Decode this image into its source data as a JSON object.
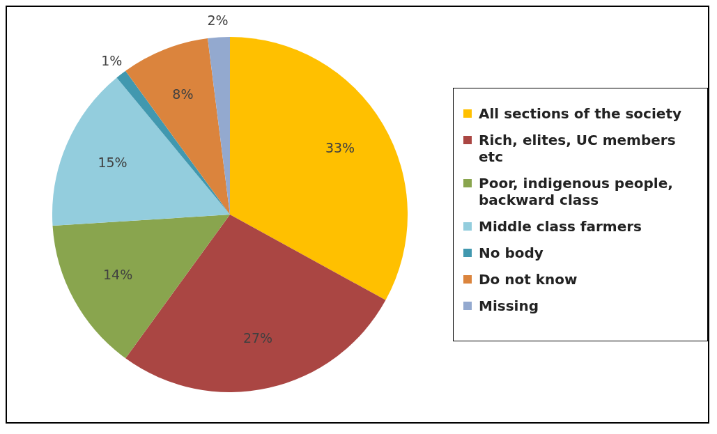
{
  "chart_data": {
    "type": "pie",
    "categories": [
      "All sections of the society",
      "Rich, elites, UC members etc",
      "Poor, indigenous people, backward class",
      "Middle class farmers",
      "No body",
      "Do not know",
      "Missing"
    ],
    "values": [
      33,
      27,
      14,
      15,
      1,
      8,
      2
    ],
    "colors": [
      "#ffc000",
      "#aa4643",
      "#89a54e",
      "#93cddd",
      "#4198af",
      "#db843d",
      "#93a9cf"
    ],
    "value_labels": [
      "33%",
      "27%",
      "14%",
      "15%",
      "1%",
      "8%",
      "2%"
    ],
    "legend": "right"
  }
}
